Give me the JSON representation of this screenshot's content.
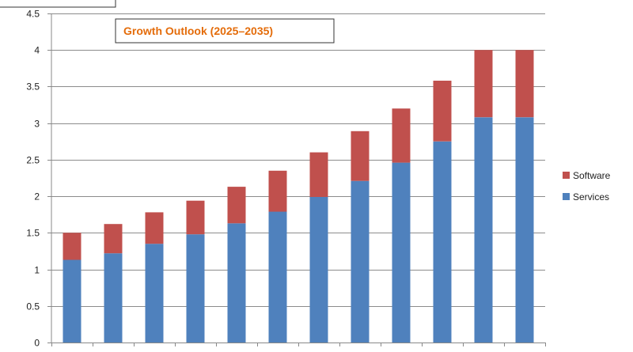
{
  "chart_data": {
    "type": "bar",
    "stacked": true,
    "title": "Growth Outlook (2025–2035)",
    "xlabel": "",
    "ylabel": "",
    "categories": [
      "",
      "",
      "",
      "",
      "",
      "",
      "",
      "",
      "",
      "",
      "",
      ""
    ],
    "ylim": [
      0,
      4.5
    ],
    "yticks": [
      "0",
      "0.5",
      "1",
      "1.5",
      "2",
      "2.5",
      "3",
      "3.5",
      "4",
      "4.5"
    ],
    "series": [
      {
        "name": "Services",
        "color": "#4F81BD",
        "values": [
          1.13,
          1.22,
          1.35,
          1.48,
          1.63,
          1.79,
          1.99,
          2.21,
          2.46,
          2.75,
          3.08,
          3.08
        ]
      },
      {
        "name": "Software",
        "color": "#C0504D",
        "values": [
          0.37,
          0.4,
          0.43,
          0.46,
          0.5,
          0.56,
          0.61,
          0.68,
          0.74,
          0.83,
          0.92,
          0.92
        ]
      }
    ],
    "grid": true,
    "legend_position": "right",
    "title_color": "#E46C0A"
  }
}
